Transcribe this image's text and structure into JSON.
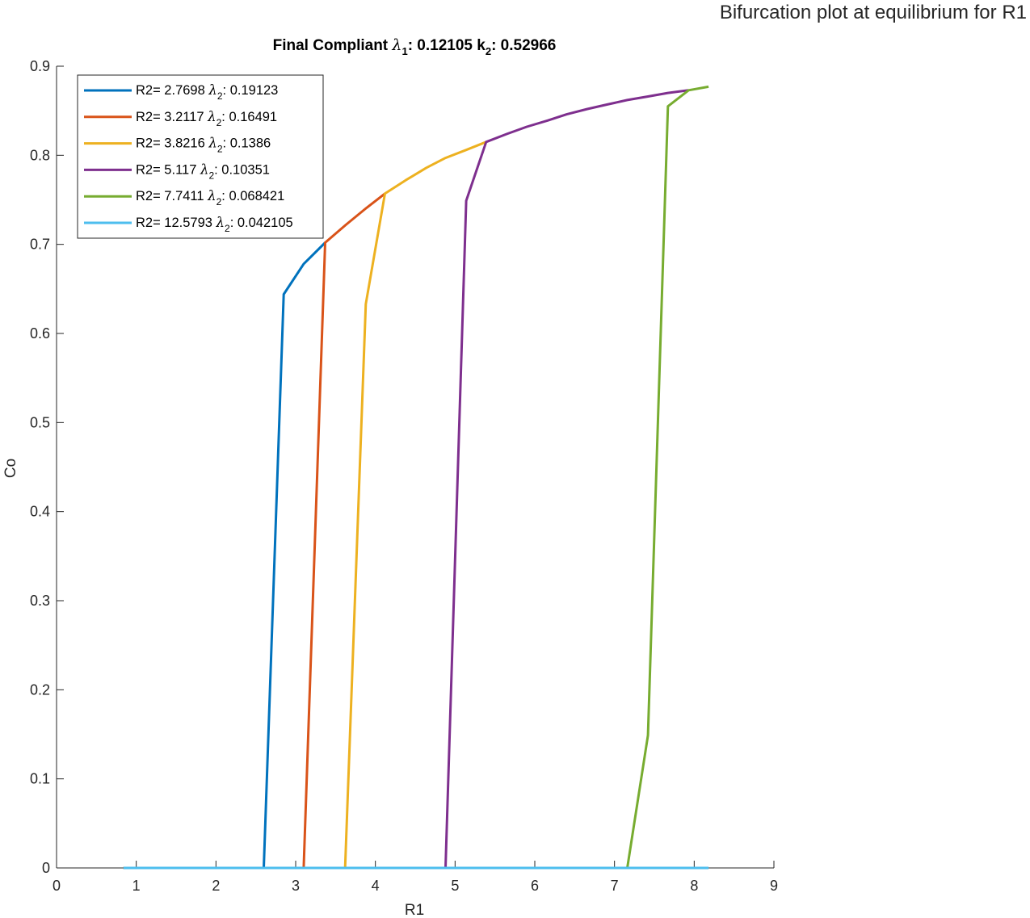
{
  "chart_data": {
    "type": "line",
    "suptitle": "Bifurcation plot at equilibrium for R1",
    "title": {
      "part1": "Final Compliant ",
      "lambda": "λ",
      "sub1": "1",
      "part2": ": 0.12105 k",
      "sub2": "2",
      "part3": ": 0.52966"
    },
    "xlabel": "R1",
    "ylabel": "Co",
    "xlim": [
      0,
      9
    ],
    "ylim": [
      0,
      0.9
    ],
    "xticks": [
      0,
      1,
      2,
      3,
      4,
      5,
      6,
      7,
      8,
      9
    ],
    "yticks": [
      0,
      0.1,
      0.2,
      0.3,
      0.4,
      0.5,
      0.6,
      0.7,
      0.8,
      0.9
    ],
    "xtick_labels": [
      "0",
      "1",
      "2",
      "3",
      "4",
      "5",
      "6",
      "7",
      "8",
      "9"
    ],
    "ytick_labels": [
      "0",
      "0.1",
      "0.2",
      "0.3",
      "0.4",
      "0.5",
      "0.6",
      "0.7",
      "0.8",
      "0.9"
    ],
    "legend_position": "top-left",
    "series": [
      {
        "name": "R2= 2.7698 λ2: 0.19123",
        "label_pre": "R2= 2.7698 ",
        "label_sub": "2",
        "label_post": ": 0.19123",
        "color": "#0072BD",
        "x": [
          0.84,
          2.6,
          2.85,
          3.1,
          3.37
        ],
        "y": [
          0,
          0,
          0.644,
          0.678,
          0.702
        ]
      },
      {
        "name": "R2= 3.2117 λ2: 0.16491",
        "label_pre": "R2= 3.2117 ",
        "label_sub": "2",
        "label_post": ": 0.16491",
        "color": "#D95319",
        "x": [
          0.84,
          3.1,
          3.37,
          3.63,
          3.89,
          4.12
        ],
        "y": [
          0,
          0,
          0.702,
          0.722,
          0.741,
          0.757
        ]
      },
      {
        "name": "R2= 3.8216 λ2: 0.1386",
        "label_pre": "R2= 3.8216 ",
        "label_sub": "2",
        "label_post": ": 0.1386",
        "color": "#EDB120",
        "x": [
          0.84,
          3.62,
          3.88,
          4.12,
          4.38,
          4.64,
          4.88,
          5.14,
          5.39
        ],
        "y": [
          0,
          0,
          0.633,
          0.757,
          0.772,
          0.786,
          0.797,
          0.806,
          0.815
        ]
      },
      {
        "name": "R2= 5.117 λ2: 0.10351",
        "label_pre": "R2= 5.117 ",
        "label_sub": "2",
        "label_post": ": 0.10351",
        "color": "#7E2F8E",
        "x": [
          0.84,
          4.88,
          5.14,
          5.39,
          5.65,
          5.9,
          6.16,
          6.4,
          6.66,
          6.91,
          7.16,
          7.42,
          7.67,
          7.93
        ],
        "y": [
          0,
          0,
          0.749,
          0.815,
          0.824,
          0.832,
          0.839,
          0.846,
          0.852,
          0.857,
          0.862,
          0.866,
          0.87,
          0.873
        ]
      },
      {
        "name": "R2= 7.7411 λ2: 0.068421",
        "label_pre": "R2= 7.7411 ",
        "label_sub": "2",
        "label_post": ": 0.068421",
        "color": "#77AC30",
        "x": [
          0.84,
          7.16,
          7.42,
          7.67,
          7.93,
          8.18
        ],
        "y": [
          0,
          0,
          0.149,
          0.855,
          0.873,
          0.877
        ]
      },
      {
        "name": "R2= 12.5793 λ2: 0.042105",
        "label_pre": "R2= 12.5793 ",
        "label_sub": "2",
        "label_post": ": 0.042105",
        "color": "#4DBEEE",
        "x": [
          0.84,
          8.18
        ],
        "y": [
          0,
          0
        ]
      }
    ]
  }
}
